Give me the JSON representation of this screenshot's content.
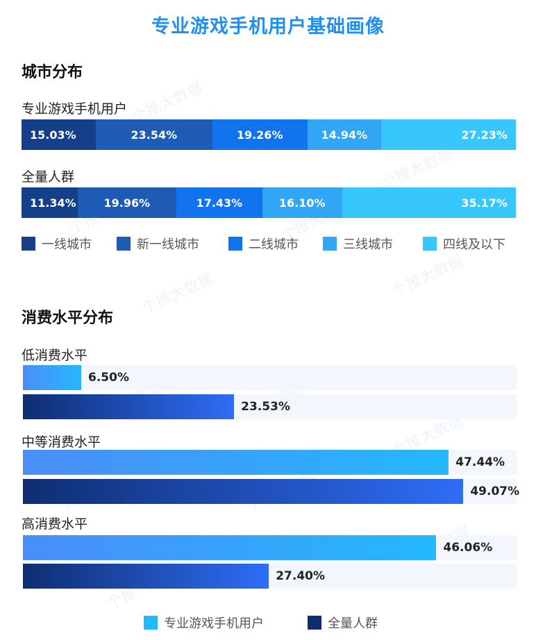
{
  "title": "专业游戏手机用户基础画像",
  "watermark": "个推大数据",
  "colors": {
    "city": [
      "#163f8a",
      "#1d5bb5",
      "#1273ee",
      "#31a6f4",
      "#37c7fd"
    ],
    "gamer_bar": [
      "#4a8ef8",
      "#24b8fd"
    ],
    "all_bar": [
      "#0f2e72",
      "#2e6df6"
    ]
  },
  "chart_data": [
    {
      "type": "bar",
      "orientation": "horizontal",
      "stacked": true,
      "percent": true,
      "title": "城市分布",
      "categories": [
        "专业游戏手机用户",
        "全量人群"
      ],
      "series": [
        {
          "name": "一线城市",
          "values": [
            15.03,
            11.34
          ],
          "labels": [
            "15.03%",
            "11.34%"
          ]
        },
        {
          "name": "新一线城市",
          "values": [
            23.54,
            19.96
          ],
          "labels": [
            "23.54%",
            "19.96%"
          ]
        },
        {
          "name": "二线城市",
          "values": [
            19.26,
            17.43
          ],
          "labels": [
            "19.26%",
            "17.43%"
          ]
        },
        {
          "name": "三线城市",
          "values": [
            14.94,
            16.1
          ],
          "labels": [
            "14.94%",
            "16.10%"
          ]
        },
        {
          "name": "四线及以下",
          "values": [
            27.23,
            35.17
          ],
          "labels": [
            "27.23%",
            "35.17%"
          ]
        }
      ],
      "legend_position": "bottom-left",
      "grid": false
    },
    {
      "type": "bar",
      "orientation": "horizontal",
      "title": "消费水平分布",
      "categories": [
        "低消费水平",
        "中等消费水平",
        "高消费水平"
      ],
      "series": [
        {
          "name": "专业游戏手机用户",
          "values": [
            6.5,
            47.44,
            46.06
          ],
          "labels": [
            "6.50%",
            "47.44%",
            "46.06%"
          ]
        },
        {
          "name": "全量人群",
          "values": [
            23.53,
            49.07,
            27.4
          ],
          "labels": [
            "23.53%",
            "49.07%",
            "27.40%"
          ]
        }
      ],
      "xlim": [
        0,
        55
      ],
      "legend_position": "bottom-center",
      "grid": false
    }
  ]
}
